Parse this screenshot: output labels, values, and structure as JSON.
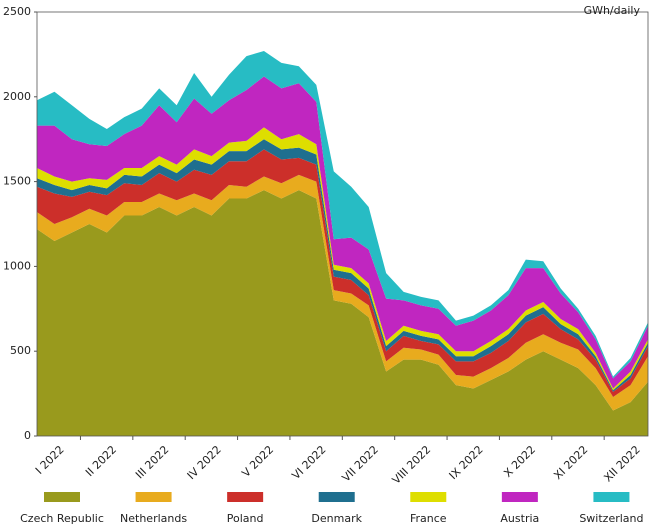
{
  "chart_data": {
    "type": "stacked_area",
    "y_label": "GWh/daily",
    "categories": [
      null,
      "I 2022",
      null,
      null,
      "II 2022",
      null,
      null,
      "III 2022",
      null,
      null,
      "IV 2022",
      null,
      null,
      "V 2022",
      null,
      null,
      "VI 2022",
      null,
      null,
      "VII 2022",
      null,
      null,
      "VIII 2022",
      null,
      null,
      "IX 2022",
      null,
      null,
      "X 2022",
      null,
      null,
      "XI 2022",
      null,
      null,
      "XII 2022",
      null
    ],
    "ylim": [
      0,
      2500
    ],
    "yticks": [
      0,
      500,
      1000,
      1500,
      2000,
      2500
    ],
    "legend": "bottom",
    "series": [
      {
        "name": "Czech Republic",
        "color": "#999a1d",
        "values": [
          1220,
          1150,
          1200,
          1250,
          1200,
          1300,
          1300,
          1350,
          1300,
          1350,
          1300,
          1400,
          1400,
          1450,
          1400,
          1450,
          1400,
          800,
          780,
          700,
          380,
          450,
          450,
          420,
          300,
          280,
          330,
          380,
          450,
          500,
          450,
          400,
          300,
          150,
          200,
          320
        ]
      },
      {
        "name": "Netherlands",
        "color": "#e8ab1e",
        "values": [
          100,
          100,
          90,
          90,
          100,
          80,
          80,
          80,
          90,
          80,
          90,
          80,
          70,
          80,
          90,
          90,
          100,
          60,
          60,
          70,
          60,
          70,
          60,
          60,
          60,
          70,
          70,
          80,
          100,
          100,
          100,
          110,
          100,
          80,
          100,
          150
        ]
      },
      {
        "name": "Poland",
        "color": "#cc2f2a",
        "values": [
          150,
          180,
          120,
          100,
          120,
          110,
          100,
          120,
          110,
          140,
          150,
          140,
          150,
          160,
          140,
          100,
          100,
          80,
          80,
          60,
          60,
          70,
          50,
          60,
          80,
          90,
          90,
          100,
          120,
          120,
          80,
          60,
          50,
          30,
          40,
          60
        ]
      },
      {
        "name": "Denmark",
        "color": "#1f6f8f",
        "values": [
          50,
          50,
          40,
          40,
          40,
          50,
          50,
          50,
          50,
          60,
          60,
          60,
          60,
          60,
          60,
          60,
          60,
          40,
          40,
          40,
          30,
          30,
          30,
          30,
          30,
          30,
          40,
          40,
          40,
          40,
          30,
          30,
          20,
          10,
          20,
          20
        ]
      },
      {
        "name": "France",
        "color": "#dede00",
        "values": [
          60,
          50,
          50,
          40,
          50,
          40,
          50,
          50,
          50,
          60,
          50,
          50,
          60,
          70,
          60,
          80,
          60,
          30,
          30,
          30,
          30,
          30,
          30,
          30,
          30,
          30,
          30,
          30,
          30,
          30,
          30,
          30,
          20,
          10,
          20,
          20
        ]
      },
      {
        "name": "Austria",
        "color": "#c026c0",
        "values": [
          250,
          300,
          250,
          200,
          200,
          200,
          250,
          300,
          250,
          300,
          250,
          250,
          300,
          300,
          300,
          300,
          250,
          150,
          180,
          200,
          250,
          150,
          150,
          150,
          150,
          180,
          180,
          200,
          250,
          200,
          150,
          100,
          80,
          60,
          60,
          80
        ]
      },
      {
        "name": "Switzerland",
        "color": "#27bcc4",
        "values": [
          150,
          200,
          200,
          150,
          100,
          100,
          100,
          100,
          100,
          150,
          100,
          150,
          200,
          150,
          150,
          100,
          100,
          400,
          300,
          250,
          150,
          50,
          50,
          50,
          30,
          30,
          30,
          30,
          50,
          40,
          30,
          20,
          20,
          10,
          20,
          20
        ]
      }
    ]
  }
}
